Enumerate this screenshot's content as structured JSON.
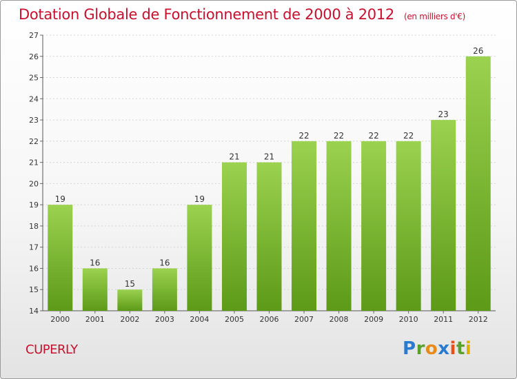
{
  "header": {
    "title": "Dotation Globale de Fonctionnement de 2000 à 2012",
    "subtitle": "(en milliers d'€)"
  },
  "footer": {
    "commune": "CUPERLY",
    "brand": "Proxiti"
  },
  "colors": {
    "title": "#c8102e",
    "bar_top": "#9bd24f",
    "bar_bottom": "#5c9a17"
  },
  "chart_data": {
    "type": "bar",
    "title": "Dotation Globale de Fonctionnement de 2000 à 2012",
    "subtitle": "(en milliers d'€)",
    "categories": [
      "2000",
      "2001",
      "2002",
      "2003",
      "2004",
      "2005",
      "2006",
      "2007",
      "2008",
      "2009",
      "2010",
      "2011",
      "2012"
    ],
    "values": [
      19,
      16,
      15,
      16,
      19,
      21,
      21,
      22,
      22,
      22,
      22,
      23,
      26
    ],
    "ylim": [
      14,
      27
    ],
    "yticks": [
      14,
      15,
      16,
      17,
      18,
      19,
      20,
      21,
      22,
      23,
      24,
      25,
      26,
      27
    ],
    "grid": true,
    "data_labels": true
  }
}
